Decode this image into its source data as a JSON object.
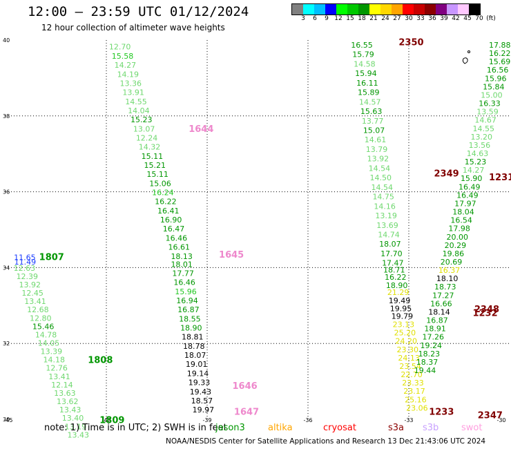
{
  "header": {
    "title": "12:00 – 23:59 UTC 01/12/2024",
    "subtitle": "12 hour collection of altimeter wave heights"
  },
  "colorbar": {
    "colors": [
      "#808080",
      "#00ffff",
      "#00bfff",
      "#0000ff",
      "#00ff00",
      "#00c800",
      "#009600",
      "#ffff00",
      "#ffd700",
      "#ffa500",
      "#ff0000",
      "#c80000",
      "#8b0000",
      "#800080",
      "#c896ff",
      "#ffc8ff",
      "#000000"
    ],
    "labels": [
      "3",
      "6",
      "9",
      "12",
      "15",
      "18",
      "21",
      "24",
      "27",
      "30",
      "33",
      "36",
      "39",
      "42",
      "45",
      "70",
      "(ft)"
    ]
  },
  "axes": {
    "x_ticks": [
      "-45",
      "-42",
      "-39",
      "-36",
      "-33",
      "-30"
    ],
    "y_ticks": [
      "40",
      "38",
      "36",
      "34",
      "32",
      "30"
    ]
  },
  "colors": {
    "bright": "#22c822",
    "light": "#6fd86f",
    "dark": "#009600",
    "yellow": "#e0e000",
    "black": "#000000",
    "blue": "#1a3cff",
    "maroon": "#800000",
    "pink": "#ee88cc"
  },
  "track_a": {
    "lon": [
      -41.92,
      -41.84,
      -41.76,
      -41.68,
      -41.6,
      -41.52,
      -41.44,
      -41.36,
      -41.28,
      -41.2,
      -41.12,
      -41.04,
      -40.96,
      -40.88,
      -40.8,
      -40.72,
      -40.64,
      -40.56,
      -40.48,
      -40.4,
      -40.32,
      -40.24,
      -40.16,
      -40.08
    ],
    "lat": [
      39.75,
      39.51,
      39.27,
      39.03,
      38.79,
      38.55,
      38.31,
      38.07,
      37.83,
      37.59,
      37.35,
      37.11,
      36.87,
      36.63,
      36.39,
      36.15,
      35.91,
      35.67,
      35.43,
      35.19,
      34.95,
      34.71,
      34.47,
      34.23
    ],
    "val": [
      "12.70",
      "15.58",
      "14.27",
      "14.19",
      "13.36",
      "13.91",
      "14.55",
      "14.04",
      "15.23",
      "13.07",
      "12.24",
      "14.32",
      "15.11",
      "15.21",
      "15.11",
      "15.06",
      "16.24",
      "16.22",
      "16.41",
      "16.90",
      "16.47",
      "16.46",
      "16.61",
      "18.13"
    ],
    "cls": [
      "light",
      "bright",
      "light",
      "light",
      "light",
      "light",
      "light",
      "light",
      "dark",
      "light",
      "light",
      "light",
      "dark",
      "dark",
      "dark",
      "dark",
      "bright",
      "dark",
      "dark",
      "dark",
      "dark",
      "dark",
      "dark",
      "dark"
    ]
  },
  "track_b": {
    "lon": [
      -40.08,
      -40.04,
      -40.0,
      -39.96,
      -39.92,
      -39.88,
      -39.84,
      -39.8,
      -39.76,
      -39.72,
      -39.68,
      -39.64,
      -39.6,
      -39.56,
      -39.52,
      -39.48,
      -39.44,
      -39.4
    ],
    "lat": [
      34.02,
      33.78,
      33.54,
      33.3,
      33.06,
      32.82,
      32.58,
      32.34,
      32.1,
      31.86,
      31.62,
      31.38,
      31.14,
      30.9,
      30.66,
      30.42,
      30.18,
      29.94
    ],
    "val": [
      "18.01",
      "17.77",
      "16.46",
      "15.96",
      "16.94",
      "16.87",
      "18.55",
      "18.90",
      "18.81",
      "18.78",
      "18.07",
      "19.01",
      "19.14",
      "19.33",
      "19.43",
      "18.57",
      "19.97"
    ],
    "cls": [
      "dark",
      "dark",
      "dark",
      "bright",
      "dark",
      "dark",
      "dark",
      "dark",
      "black",
      "black",
      "black",
      "black",
      "black",
      "black",
      "black",
      "black",
      "black"
    ]
  },
  "track_c": {
    "lon": [
      -44.76,
      -44.68,
      -44.6,
      -44.52,
      -44.44,
      -44.36,
      -44.28,
      -44.2,
      -44.12,
      -44.04,
      -43.96,
      -43.88,
      -43.8,
      -43.72,
      -43.64,
      -43.56,
      -43.48,
      -43.4,
      -43.32,
      -43.24,
      -43.16,
      -43.08,
      -43.0
    ],
    "lat": [
      33.92,
      33.7,
      33.48,
      33.26,
      33.04,
      32.82,
      32.6,
      32.38,
      32.16,
      31.94,
      31.72,
      31.5,
      31.28,
      31.06,
      30.84,
      30.62,
      30.4,
      30.18,
      29.96,
      29.74,
      29.52,
      29.3,
      29.08
    ],
    "val": [
      "12.63",
      "12.39",
      "13.92",
      "12.45",
      "13.41",
      "12.68",
      "12.80",
      "15.46",
      "14.78",
      "14.05",
      "13.39",
      "14.18",
      "12.76",
      "13.41",
      "12.14",
      "13.63",
      "13.62",
      "13.43",
      "13.40",
      "13.19",
      "13.43"
    ],
    "cls": [
      "light",
      "light",
      "light",
      "light",
      "light",
      "light",
      "light",
      "dark",
      "light",
      "light",
      "light",
      "light",
      "light",
      "light",
      "light",
      "light",
      "light",
      "light",
      "light",
      "light",
      "light"
    ]
  },
  "track_d": {
    "lon": [
      -34.72,
      -34.68,
      -34.64,
      -34.6,
      -34.56,
      -34.52,
      -34.48,
      -34.44,
      -34.4,
      -34.36,
      -34.32,
      -34.28,
      -34.24,
      -34.2,
      -34.16,
      -34.12,
      -34.08,
      -34.04,
      -34.0,
      -33.96,
      -33.92,
      -33.88,
      -33.84,
      -33.8
    ],
    "lat": [
      39.8,
      39.55,
      39.3,
      39.05,
      38.8,
      38.55,
      38.3,
      38.05,
      37.8,
      37.55,
      37.3,
      37.05,
      36.8,
      36.55,
      36.3,
      36.05,
      35.8,
      35.55,
      35.3,
      35.05,
      34.8,
      34.55,
      34.3,
      34.05
    ],
    "val": [
      "16.55",
      "15.79",
      "14.58",
      "15.94",
      "16.11",
      "15.89",
      "14.57",
      "15.63",
      "13.77",
      "15.07",
      "14.61",
      "13.79",
      "13.92",
      "14.54",
      "14.50",
      "14.54",
      "14.75",
      "14.16",
      "13.19",
      "13.69",
      "14.74",
      "18.07",
      "17.70",
      "17.47"
    ],
    "cls": [
      "dark",
      "dark",
      "light",
      "dark",
      "dark",
      "dark",
      "light",
      "dark",
      "light",
      "dark",
      "light",
      "light",
      "light",
      "light",
      "light",
      "light",
      "light",
      "light",
      "light",
      "light",
      "light",
      "dark",
      "dark",
      "dark"
    ]
  },
  "track_e": {
    "lon": [
      -33.76,
      -33.72,
      -33.68,
      -33.64,
      -33.6,
      -33.56,
      -33.52,
      -33.48,
      -33.44,
      -33.4,
      -33.36,
      -33.32,
      -33.28,
      -33.24,
      -33.2,
      -33.16,
      -33.12,
      -33.08,
      -33.04,
      -33.0,
      -32.96,
      -32.92,
      -32.88,
      -32.84,
      -32.8
    ],
    "lat": [
      33.87,
      33.68,
      33.46,
      33.28,
      33.06,
      32.85,
      32.65,
      32.43,
      32.21,
      31.99,
      31.77,
      31.55,
      31.33,
      31.11,
      30.89,
      30.67,
      30.45,
      30.23,
      30.01,
      29.79,
      29.57,
      29.35,
      29.13,
      28.91,
      28.69
    ],
    "val": [
      "18.71",
      "16.22",
      "18.90",
      "21.29",
      "19.49",
      "19.95",
      "19.79",
      "23.13",
      "25.20",
      "24.20",
      "23.30",
      "24.13",
      "23.54",
      "22.70",
      "23.33",
      "23.17",
      "25.16",
      "23.06"
    ],
    "cls": [
      "dark",
      "dark",
      "dark",
      "yellow",
      "black",
      "black",
      "black",
      "yellow",
      "yellow",
      "yellow",
      "yellow",
      "yellow",
      "yellow",
      "yellow",
      "yellow",
      "yellow",
      "yellow",
      "yellow"
    ]
  },
  "track_f": {
    "lon": [
      -30.5,
      -30.56,
      -30.62,
      -30.68,
      -30.74,
      -30.8,
      -30.86,
      -30.92,
      -30.98,
      -31.04,
      -31.1,
      -31.16,
      -31.22,
      -31.28,
      -31.34,
      -31.4,
      -31.46,
      -31.52,
      -31.58,
      -31.64,
      -31.7,
      -31.76,
      -31.82,
      -31.88,
      -31.94,
      -32.0,
      -32.06,
      -32.12,
      -32.18,
      -32.24,
      -32.3,
      -32.36,
      -32.42,
      -32.48,
      -32.54,
      -32.6,
      -32.66,
      -32.72,
      -32.78,
      -32.84
    ],
    "lat": [
      39.8,
      39.58,
      39.36,
      39.14,
      38.92,
      38.7,
      38.48,
      38.26,
      38.04,
      37.82,
      37.6,
      37.38,
      37.16,
      36.94,
      36.72,
      36.5,
      36.28,
      36.06,
      35.84,
      35.62,
      35.4,
      35.18,
      34.96,
      34.74,
      34.52,
      34.3,
      34.08,
      33.86,
      33.64,
      33.42,
      33.2,
      32.98,
      32.76,
      32.54,
      32.32,
      32.1,
      31.88,
      31.66,
      31.44,
      31.22
    ],
    "val": [
      "17.88",
      "16.22",
      "15.69",
      "16.56",
      "15.96",
      "15.84",
      "15.00",
      "16.33",
      "13.59",
      "14.67",
      "14.55",
      "13.20",
      "13.56",
      "14.63",
      "15.23",
      "14.27",
      "15.90",
      "16.49",
      "16.49",
      "17.97",
      "18.04",
      "16.54",
      "17.98",
      "20.00",
      "20.29",
      "19.86",
      "20.69",
      "16.37",
      "18.10",
      "18.73",
      "17.27",
      "16.66",
      "18.14",
      "16.87",
      "18.91",
      "17.26",
      "19.24",
      "18.23",
      "18.37",
      "19.44"
    ],
    "cls": [
      "dark",
      "dark",
      "dark",
      "dark",
      "dark",
      "dark",
      "light",
      "dark",
      "light",
      "light",
      "light",
      "light",
      "light",
      "light",
      "dark",
      "light",
      "dark",
      "dark",
      "dark",
      "dark",
      "dark",
      "dark",
      "dark",
      "dark",
      "dark",
      "dark",
      "dark",
      "yellow",
      "black",
      "dark",
      "dark",
      "dark",
      "black",
      "dark",
      "dark",
      "dark",
      "dark",
      "dark",
      "dark",
      "dark"
    ]
  },
  "extras": [
    {
      "text": "11.65",
      "lon": -44.75,
      "lat": 34.2,
      "cls": "blue"
    },
    {
      "text": "11.49",
      "lon": -44.74,
      "lat": 34.08,
      "cls": "blue"
    },
    {
      "text": "1807",
      "lon": -44.0,
      "lat": 34.2,
      "cls": "dark",
      "big": true
    },
    {
      "text": "1808",
      "lon": -42.55,
      "lat": 31.48,
      "cls": "dark",
      "big": true
    },
    {
      "text": "1809",
      "lon": -42.2,
      "lat": 29.9,
      "cls": "dark",
      "big": true
    },
    {
      "text": "1644",
      "lon": -39.55,
      "lat": 37.58,
      "cls": "pink",
      "big": true
    },
    {
      "text": "1645",
      "lon": -38.65,
      "lat": 34.26,
      "cls": "pink",
      "big": true
    },
    {
      "text": "1646",
      "lon": -38.25,
      "lat": 30.8,
      "cls": "pink",
      "big": true
    },
    {
      "text": "1647",
      "lon": -38.2,
      "lat": 30.12,
      "cls": "pink",
      "big": true
    },
    {
      "text": "2350",
      "lon": -33.3,
      "lat": 39.86,
      "cls": "maroon",
      "big": true
    },
    {
      "text": "2349",
      "lon": -32.25,
      "lat": 36.4,
      "cls": "maroon",
      "big": true
    },
    {
      "text": "2348",
      "lon": -31.05,
      "lat": 32.82,
      "cls": "maroon",
      "big": true
    },
    {
      "text": "1232",
      "lon": -31.1,
      "lat": 32.72,
      "cls": "maroon",
      "big": true
    },
    {
      "text": "1231",
      "lon": -30.35,
      "lat": 36.3,
      "cls": "maroon",
      "big": true
    },
    {
      "text": "1233",
      "lon": -32.4,
      "lat": 30.12,
      "cls": "maroon",
      "big": true
    },
    {
      "text": "2347",
      "lon": -30.95,
      "lat": 30.03,
      "cls": "maroon",
      "big": true
    }
  ],
  "note": "note:  1) Time is in UTC; 2) SWH is in feet",
  "legend": [
    {
      "label": "jason3",
      "color": "#009600"
    },
    {
      "label": "altika",
      "color": "#ffa500"
    },
    {
      "label": "cryosat",
      "color": "#ff0000"
    },
    {
      "label": "s3a",
      "color": "#8b0000"
    },
    {
      "label": "s3b",
      "color": "#c8a0ff"
    },
    {
      "label": "swot",
      "color": "#ffa0e0"
    }
  ],
  "footer": "NOAA/NESDIS Center for Satellite Applications and Research   13 Dec 21:43:06 UTC 2024"
}
